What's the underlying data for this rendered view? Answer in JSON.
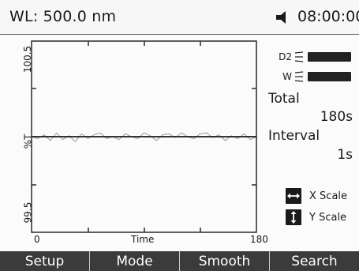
{
  "header": {
    "wavelength": "WL: 500.0 nm",
    "sound_icon": "speaker-icon",
    "time": "08:00:00"
  },
  "chart_data": {
    "type": "line",
    "ylabel": "%T",
    "xlabel": "Time",
    "xlim": [
      0,
      180
    ],
    "ylim": [
      99.5,
      100.5
    ],
    "y_ticks": [
      "100.5",
      "%T",
      "99.5"
    ],
    "x_ticks": [
      "0",
      "180"
    ],
    "baseline": 100.0,
    "series": [
      {
        "color": "#9a9a9a",
        "x": [
          0,
          5,
          10,
          15,
          20,
          25,
          30,
          35,
          40,
          45,
          50,
          55,
          60,
          65,
          70,
          75,
          80,
          85,
          90,
          95,
          100,
          105,
          110,
          115,
          120,
          125,
          130,
          135,
          140,
          145,
          150,
          155,
          160,
          165,
          170,
          175,
          180
        ],
        "y": [
          100.0,
          99.99,
          100.01,
          99.98,
          100.02,
          99.985,
          100.005,
          99.975,
          100.015,
          99.99,
          100.01,
          100.02,
          99.99,
          100.0,
          99.985,
          100.015,
          100.0,
          99.99,
          100.02,
          100.005,
          99.98,
          100.01,
          100.015,
          99.995,
          100.02,
          100.0,
          99.99,
          100.015,
          100.02,
          99.995,
          100.01,
          99.98,
          100.005,
          99.99,
          100.015,
          99.985,
          100.0
        ]
      }
    ]
  },
  "lamps": [
    {
      "name": "D2"
    },
    {
      "name": "W"
    }
  ],
  "settings": {
    "total_label": "Total",
    "total_value": "180s",
    "interval_label": "Interval",
    "interval_value": "1s"
  },
  "scales": {
    "x_label": "X Scale",
    "y_label": "Y Scale"
  },
  "softkeys": [
    "Setup",
    "Mode",
    "Smooth",
    "Search"
  ]
}
